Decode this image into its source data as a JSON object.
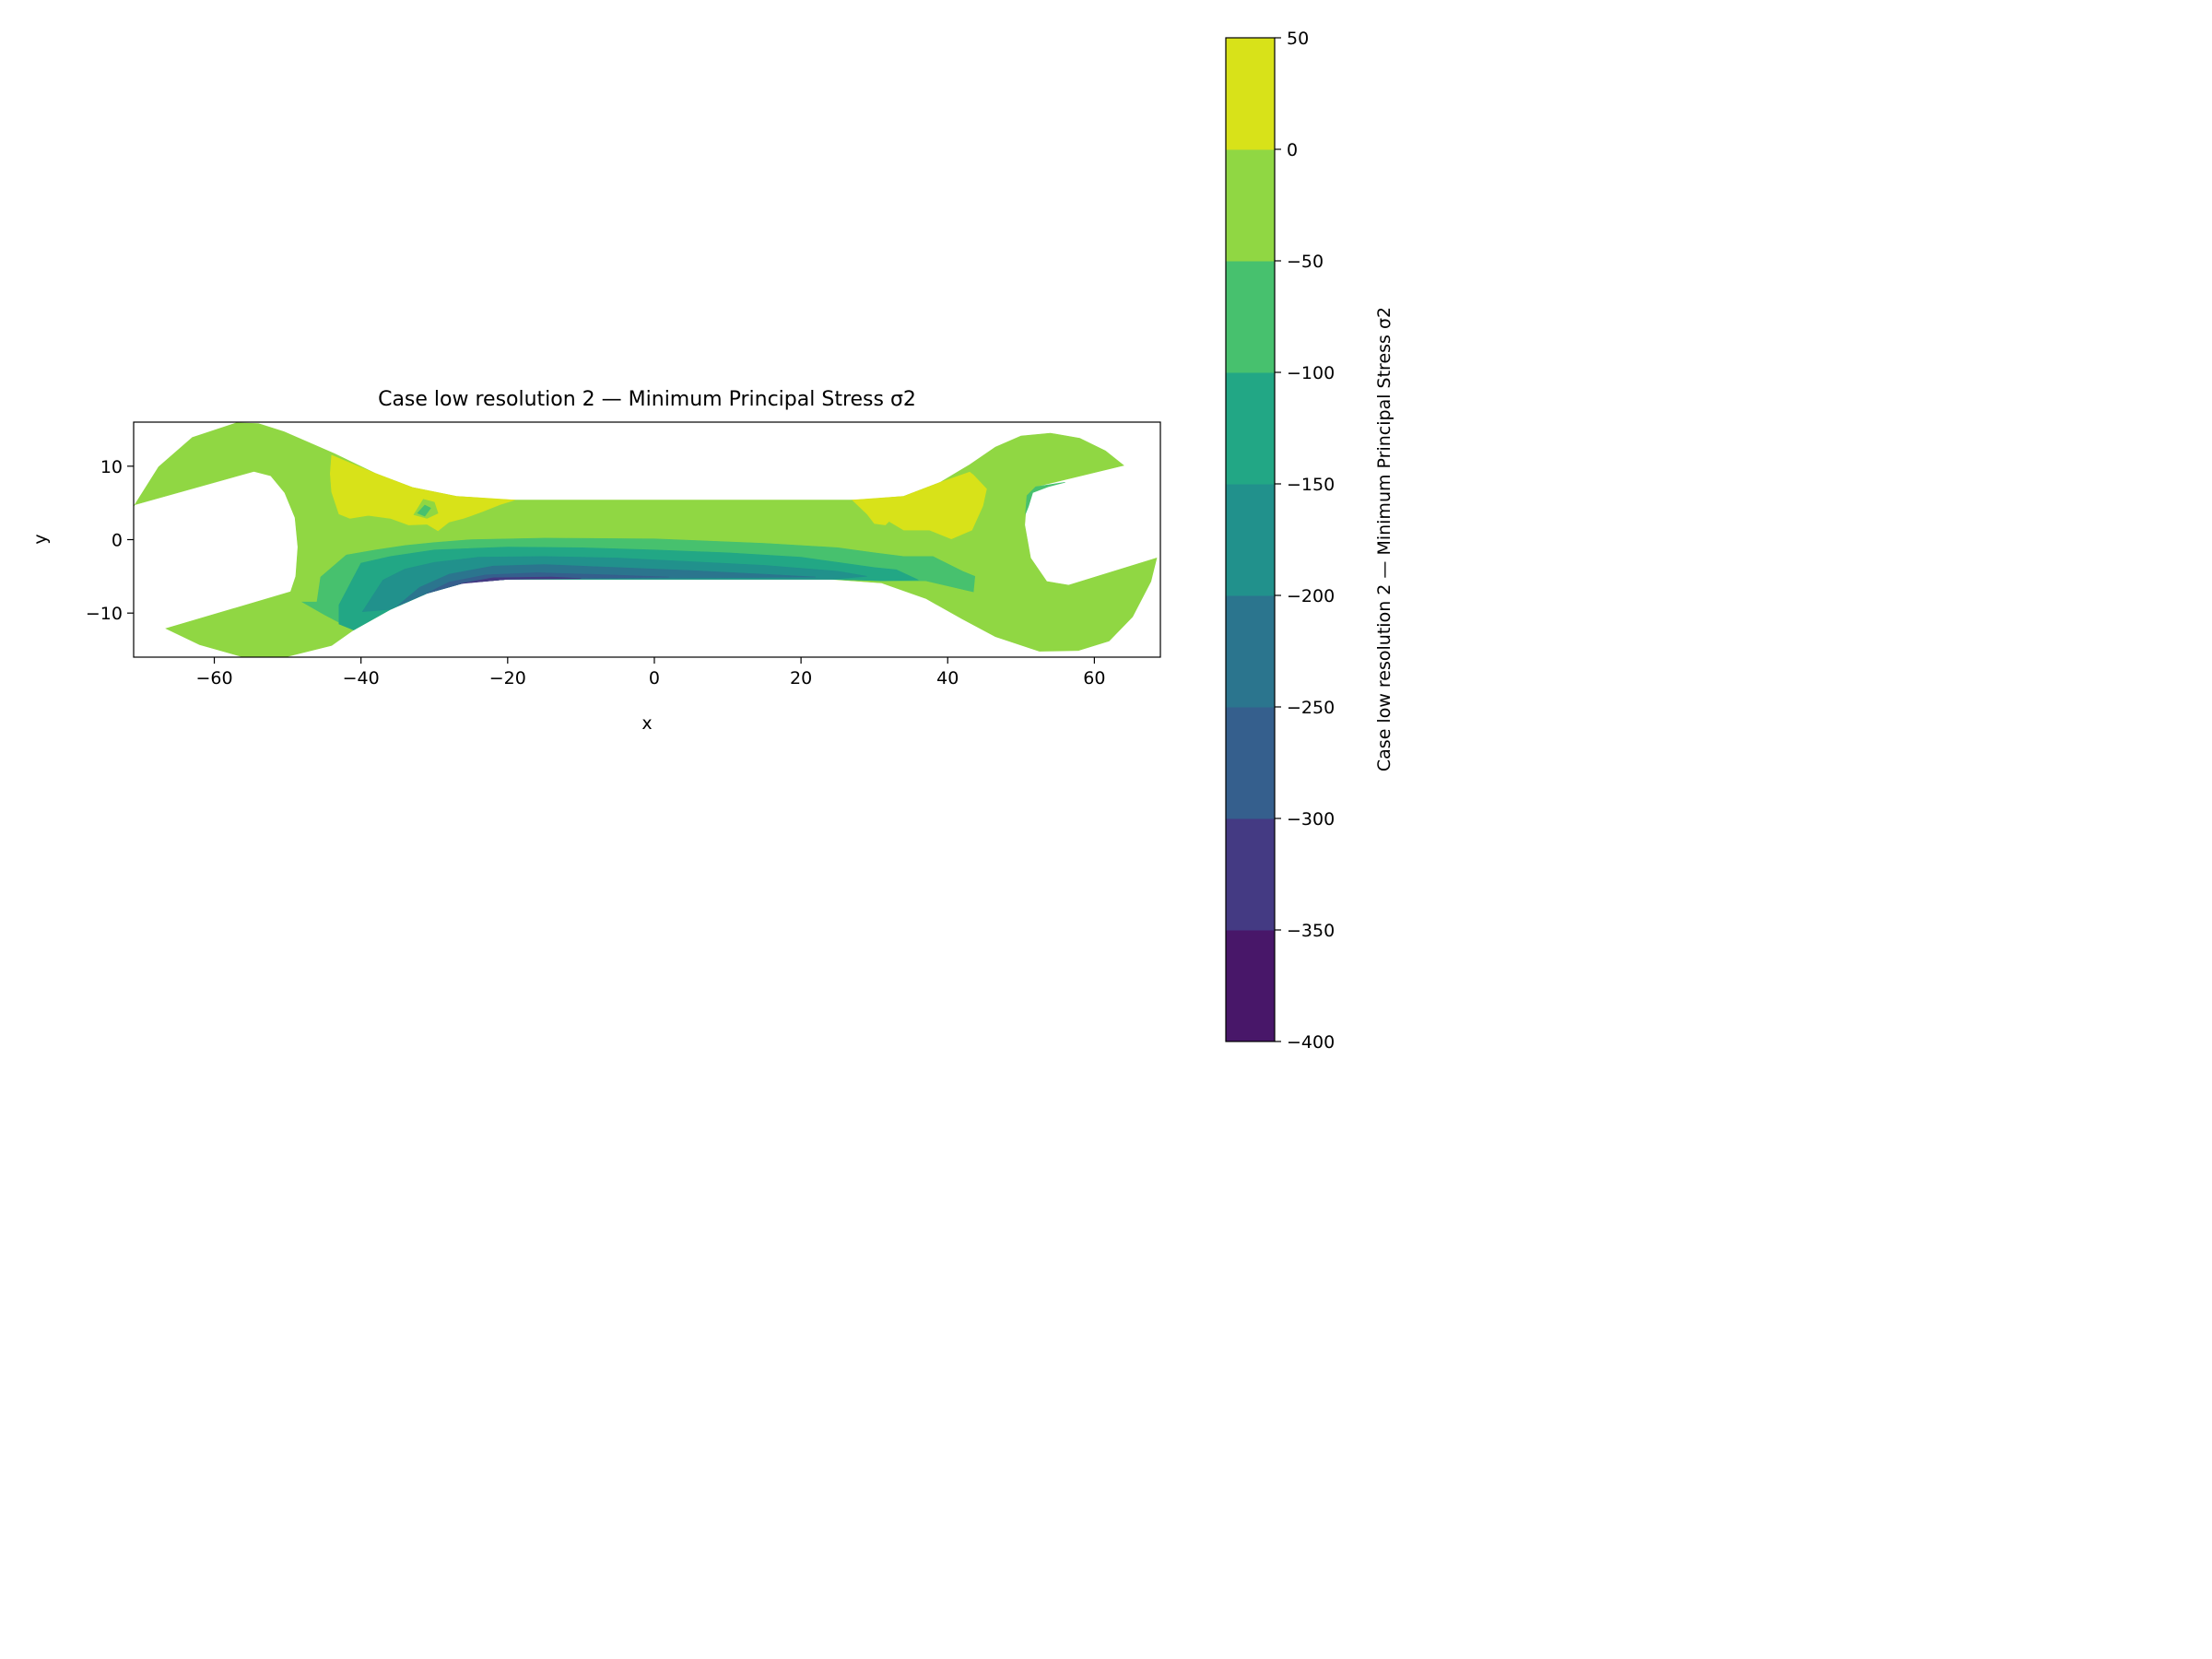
{
  "chart_data": {
    "type": "heatmap",
    "title": "Case low resolution 2 — Minimum Principal Stress σ2",
    "xlabel": "x",
    "ylabel": "y",
    "xlim": [
      -71,
      69
    ],
    "ylim": [
      -16,
      16
    ],
    "x_ticks": [
      -60,
      -40,
      -20,
      0,
      20,
      40,
      60
    ],
    "y_ticks": [
      -10,
      0,
      10
    ],
    "x_tick_labels": [
      "−60",
      "−40",
      "−20",
      "0",
      "20",
      "40",
      "60"
    ],
    "y_tick_labels": [
      "−10",
      "0",
      "10"
    ],
    "colorbar": {
      "label": "Case low resolution 2 — Minimum Principal Stress σ2",
      "levels": [
        -400,
        -350,
        -300,
        -250,
        -200,
        -150,
        -100,
        -50,
        0,
        50
      ],
      "tick_labels": [
        "−400",
        "−350",
        "−300",
        "−250",
        "−200",
        "−150",
        "−100",
        "−50",
        "0",
        "50"
      ],
      "colors": [
        "#481769",
        "#443a83",
        "#355f8d",
        "#2b758e",
        "#21918c",
        "#22a785",
        "#47c16e",
        "#90d743",
        "#d8e219"
      ]
    },
    "regions": [
      {
        "band": 7,
        "name": "domain-background",
        "polygon": [
          [
            -71,
            4.5
          ],
          [
            -67.6,
            9.9
          ],
          [
            -63,
            13.9
          ],
          [
            -57,
            15.9
          ],
          [
            -54,
            15.8
          ],
          [
            -50.5,
            14.7
          ],
          [
            -43.6,
            11.7
          ],
          [
            -38,
            9
          ],
          [
            -33,
            7.1
          ],
          [
            -27,
            5.9
          ],
          [
            -20,
            5.4
          ],
          [
            28,
            5.4
          ],
          [
            34,
            5.9
          ],
          [
            39,
            7.8
          ],
          [
            43,
            10.2
          ],
          [
            46.5,
            12.6
          ],
          [
            50,
            14.1
          ],
          [
            54,
            14.5
          ],
          [
            58,
            13.8
          ],
          [
            61.5,
            12.1
          ],
          [
            64,
            10.1
          ],
          [
            52,
            7.2
          ],
          [
            50.8,
            6
          ],
          [
            50.5,
            2
          ],
          [
            51.3,
            -2.5
          ],
          [
            53.5,
            -5.7
          ],
          [
            56.5,
            -6.2
          ],
          [
            68.5,
            -2.5
          ],
          [
            67.7,
            -5.7
          ],
          [
            65.2,
            -10.5
          ],
          [
            62,
            -13.8
          ],
          [
            57.8,
            -15.1
          ],
          [
            52.5,
            -15.2
          ],
          [
            46.5,
            -13.2
          ],
          [
            42,
            -10.8
          ],
          [
            37,
            -8
          ],
          [
            31,
            -5.9
          ],
          [
            24,
            -5.4
          ],
          [
            -20,
            -5.4
          ],
          [
            -26,
            -5.9
          ],
          [
            -31,
            -7.3
          ],
          [
            -36,
            -9.5
          ],
          [
            -41,
            -12.3
          ],
          [
            -44,
            -14.4
          ],
          [
            -50,
            -15.9
          ],
          [
            -56,
            -16
          ],
          [
            -62,
            -14.3
          ],
          [
            -66.6,
            -12.1
          ],
          [
            -49.6,
            -7.1
          ],
          [
            -48.9,
            -5
          ],
          [
            -48.6,
            -1
          ],
          [
            -49,
            3
          ],
          [
            -50.4,
            6.4
          ],
          [
            -52.3,
            8.7
          ],
          [
            -54.6,
            9.3
          ],
          [
            -71,
            4.7
          ]
        ]
      },
      {
        "band": 8,
        "name": "yellow-top-left-band",
        "polygon": [
          [
            -44,
            11.5
          ],
          [
            -38,
            9
          ],
          [
            -33,
            7.1
          ],
          [
            -27,
            5.9
          ],
          [
            -19,
            5.4
          ],
          [
            -21,
            4.8
          ],
          [
            -23.5,
            3.8
          ],
          [
            -26,
            2.9
          ],
          [
            -28,
            2.4
          ],
          [
            -29.5,
            1.2
          ],
          [
            -31,
            2.1
          ],
          [
            -33.5,
            2
          ],
          [
            -36,
            2.9
          ],
          [
            -39,
            3.3
          ],
          [
            -41.5,
            2.9
          ],
          [
            -43,
            3.5
          ],
          [
            -44,
            6.5
          ],
          [
            -44.2,
            9
          ]
        ]
      },
      {
        "band": 7,
        "name": "green-pocket-top-left",
        "polygon": [
          [
            -32.8,
            3.4
          ],
          [
            -31.5,
            5.5
          ],
          [
            -30,
            5.1
          ],
          [
            -29.5,
            3.6
          ],
          [
            -31,
            2.9
          ]
        ]
      },
      {
        "band": 6,
        "name": "teal-pocket-top-left",
        "polygon": [
          [
            -32.3,
            3.6
          ],
          [
            -31.3,
            4.7
          ],
          [
            -30.5,
            4.3
          ],
          [
            -31.3,
            3.2
          ]
        ]
      },
      {
        "band": 8,
        "name": "yellow-top-right-band",
        "polygon": [
          [
            27,
            5.4
          ],
          [
            34,
            5.9
          ],
          [
            39,
            7.8
          ],
          [
            43,
            9.2
          ],
          [
            43.5,
            8.8
          ],
          [
            45.3,
            6.9
          ],
          [
            44.8,
            4.6
          ],
          [
            43.3,
            1.3
          ],
          [
            40.5,
            0.1
          ],
          [
            37.5,
            1.3
          ],
          [
            34,
            1.3
          ],
          [
            32,
            2.5
          ],
          [
            31.5,
            2
          ],
          [
            30,
            2.2
          ],
          [
            29,
            3.5
          ]
        ]
      },
      {
        "band": 6,
        "name": "lower-band-100",
        "polygon": [
          [
            -46,
            -8.5
          ],
          [
            -45.5,
            -5.1
          ],
          [
            -42,
            -2.1
          ],
          [
            -38,
            -1.4
          ],
          [
            -34,
            -0.8
          ],
          [
            -30,
            -0.4
          ],
          [
            -25,
            0
          ],
          [
            -15,
            0.2
          ],
          [
            0,
            0.1
          ],
          [
            15,
            -0.5
          ],
          [
            25,
            -1.1
          ],
          [
            30,
            -1.8
          ],
          [
            34,
            -2.3
          ],
          [
            38,
            -2.3
          ],
          [
            42,
            -4.3
          ],
          [
            43.7,
            -5
          ],
          [
            43.5,
            -7.1
          ],
          [
            37,
            -5.6
          ],
          [
            31,
            -5.6
          ],
          [
            24,
            -5.4
          ],
          [
            -20,
            -5.4
          ],
          [
            -26,
            -5.9
          ],
          [
            -31,
            -7.3
          ],
          [
            -36,
            -9.5
          ],
          [
            -41,
            -12.3
          ],
          [
            -45,
            -10.2
          ],
          [
            -48,
            -8.5
          ]
        ]
      },
      {
        "band": 5,
        "name": "lower-band-150",
        "polygon": [
          [
            -43,
            -8.9
          ],
          [
            -40,
            -3.2
          ],
          [
            -36,
            -2.3
          ],
          [
            -30,
            -1.4
          ],
          [
            -20,
            -1
          ],
          [
            -10,
            -1.1
          ],
          [
            0,
            -1.4
          ],
          [
            10,
            -1.8
          ],
          [
            20,
            -2.4
          ],
          [
            25,
            -3.1
          ],
          [
            30,
            -3.8
          ],
          [
            33,
            -4.1
          ],
          [
            36,
            -5.5
          ],
          [
            31,
            -5.6
          ],
          [
            24,
            -5.4
          ],
          [
            -20,
            -5.4
          ],
          [
            -26,
            -5.9
          ],
          [
            -31,
            -7.3
          ],
          [
            -36,
            -9.5
          ],
          [
            -41,
            -12.3
          ],
          [
            -43,
            -11.5
          ]
        ]
      },
      {
        "band": 4,
        "name": "lower-band-200",
        "polygon": [
          [
            -39.8,
            -9.8
          ],
          [
            -37,
            -5.5
          ],
          [
            -34,
            -4
          ],
          [
            -30,
            -3.1
          ],
          [
            -24,
            -2.4
          ],
          [
            -15,
            -2.3
          ],
          [
            -5,
            -2.5
          ],
          [
            5,
            -3
          ],
          [
            15,
            -3.5
          ],
          [
            25,
            -4.3
          ],
          [
            29,
            -5
          ],
          [
            24,
            -5.4
          ],
          [
            -20,
            -5.4
          ],
          [
            -26,
            -5.9
          ],
          [
            -31,
            -7.3
          ],
          [
            -36,
            -9.5
          ]
        ]
      },
      {
        "band": 3,
        "name": "lower-band-250",
        "polygon": [
          [
            -35,
            -9
          ],
          [
            -32,
            -6.5
          ],
          [
            -28,
            -4.7
          ],
          [
            -22,
            -3.6
          ],
          [
            -15,
            -3.4
          ],
          [
            -5,
            -3.8
          ],
          [
            5,
            -4.2
          ],
          [
            15,
            -4.7
          ],
          [
            22,
            -5.1
          ],
          [
            -20,
            -5.4
          ],
          [
            -26,
            -5.9
          ],
          [
            -31,
            -7.3
          ]
        ]
      },
      {
        "band": 2,
        "name": "lower-band-300",
        "polygon": [
          [
            -31,
            -7.3
          ],
          [
            -28,
            -5.8
          ],
          [
            -23,
            -4.8
          ],
          [
            -16,
            -4.5
          ],
          [
            -6,
            -4.8
          ],
          [
            2,
            -5.1
          ],
          [
            -20,
            -5.4
          ],
          [
            -26,
            -5.9
          ]
        ]
      },
      {
        "band": 1,
        "name": "lower-band-350",
        "polygon": [
          [
            -26.5,
            -6
          ],
          [
            -22,
            -5.2
          ],
          [
            -14,
            -5.1
          ],
          [
            -10,
            -5.3
          ],
          [
            -20,
            -5.4
          ]
        ]
      },
      {
        "band": 6,
        "name": "teal-notch-right",
        "polygon": [
          [
            51.6,
            6.4
          ],
          [
            53.7,
            7.2
          ],
          [
            56,
            7.8
          ],
          [
            52,
            7.2
          ],
          [
            50.8,
            6
          ],
          [
            50.6,
            3.5
          ],
          [
            51,
            4.5
          ]
        ]
      }
    ]
  }
}
